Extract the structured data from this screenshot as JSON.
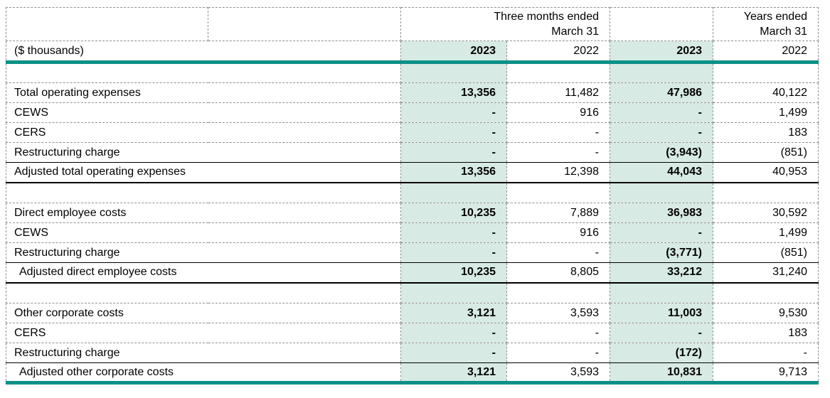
{
  "colors": {
    "highlight": "#d7eae3",
    "accent": "#0a9186",
    "grid": "#909090"
  },
  "table": {
    "unit_label": "($ thousands)",
    "period_headers": [
      {
        "line1": "Three months ended",
        "line2": "March 31"
      },
      {
        "line1": "Years ended",
        "line2": "March 31"
      }
    ],
    "year_columns": [
      "2023",
      "2022",
      "2023",
      "2022"
    ],
    "sections": [
      {
        "rows": [
          {
            "label": "Total operating expenses",
            "values": [
              "13,356",
              "11,482",
              "47,986",
              "40,122"
            ]
          },
          {
            "label": "CEWS",
            "values": [
              "-",
              "916",
              "-",
              "1,499"
            ]
          },
          {
            "label": "CERS",
            "values": [
              "-",
              "-",
              "-",
              "183"
            ]
          },
          {
            "label": "Restructuring charge",
            "values": [
              "-",
              "-",
              "(3,943)",
              "(851)"
            ],
            "rule_below": "solid"
          },
          {
            "label": "Adjusted total operating expenses",
            "values": [
              "13,356",
              "12,398",
              "44,043",
              "40,953"
            ],
            "rule_below": "heavy"
          }
        ]
      },
      {
        "rows": [
          {
            "label": "Direct employee costs",
            "values": [
              "10,235",
              "7,889",
              "36,983",
              "30,592"
            ]
          },
          {
            "label": "CEWS",
            "values": [
              "-",
              "916",
              "-",
              "1,499"
            ]
          },
          {
            "label": "Restructuring charge",
            "values": [
              "-",
              "-",
              "(3,771)",
              "(851)"
            ],
            "rule_below": "solid"
          },
          {
            "label": "Adjusted direct employee costs",
            "values": [
              "10,235",
              "8,805",
              "33,212",
              "31,240"
            ],
            "rule_below": "heavy",
            "indent": true
          }
        ]
      },
      {
        "rows": [
          {
            "label": "Other corporate costs",
            "values": [
              "3,121",
              "3,593",
              "11,003",
              "9,530"
            ]
          },
          {
            "label": "CERS",
            "values": [
              "-",
              "-",
              "-",
              "183"
            ]
          },
          {
            "label": "Restructuring charge",
            "values": [
              "-",
              "-",
              "(172)",
              "-"
            ],
            "rule_below": "solid"
          },
          {
            "label": "Adjusted other corporate costs",
            "values": [
              "3,121",
              "3,593",
              "10,831",
              "9,713"
            ],
            "rule_below": "accent",
            "indent": true
          }
        ]
      }
    ]
  }
}
